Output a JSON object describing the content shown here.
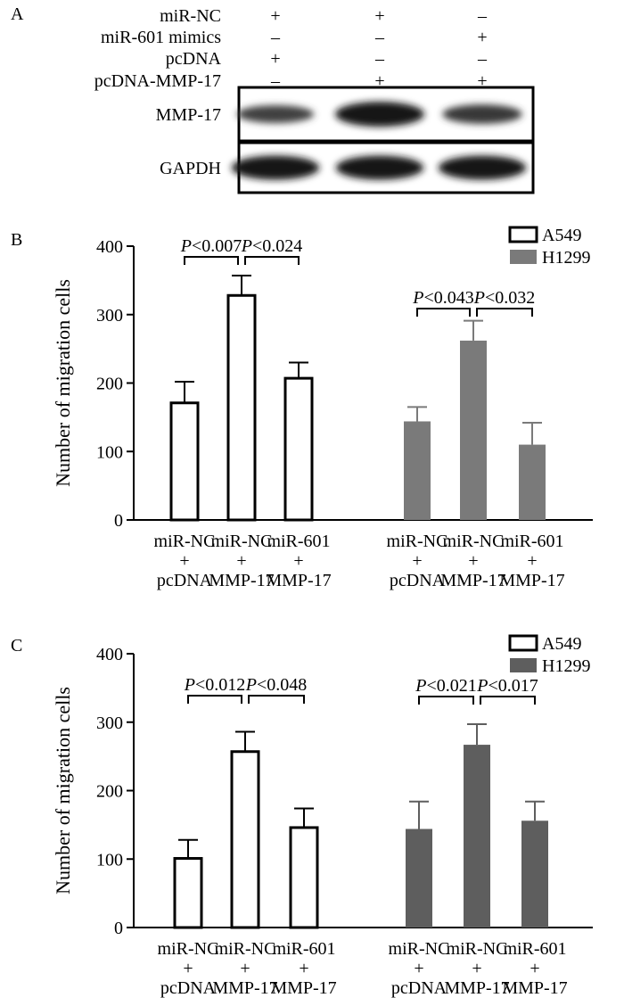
{
  "panel_a": {
    "label": "A",
    "conditions": [
      {
        "label": "miR-NC",
        "signs": [
          "+",
          "+",
          "–"
        ]
      },
      {
        "label": "miR-601 mimics",
        "signs": [
          "–",
          "–",
          "+"
        ]
      },
      {
        "label": "pcDNA",
        "signs": [
          "+",
          "–",
          "–"
        ]
      },
      {
        "label": "pcDNA-MMP-17",
        "signs": [
          "–",
          "+",
          "+"
        ]
      }
    ],
    "blots": [
      {
        "label": "MMP-17",
        "intensity": [
          0.55,
          1.0,
          0.65
        ]
      },
      {
        "label": "GAPDH",
        "intensity": [
          0.95,
          0.95,
          0.95
        ]
      }
    ]
  },
  "chart_data": [
    {
      "panel": "B",
      "type": "bar",
      "ylabel": "Number of migration cells",
      "ylim": [
        0,
        400
      ],
      "yticks": [
        "0",
        "100",
        "200",
        "300",
        "400"
      ],
      "groups": [
        {
          "series": "A549",
          "categories": [
            [
              "miR-NC",
              "+",
              "pcDNA"
            ],
            [
              "miR-NC",
              "+",
              "MMP-17"
            ],
            [
              "miR-601",
              "+",
              "MMP-17"
            ]
          ],
          "values": [
            171,
            328,
            207
          ],
          "errors": [
            31,
            29,
            23
          ],
          "pvalues": [
            {
              "from": 0,
              "to": 1,
              "label": "<0.007"
            },
            {
              "from": 1,
              "to": 2,
              "label": "<0.024"
            }
          ]
        },
        {
          "series": "H1299",
          "categories": [
            [
              "miR-NC",
              "+",
              "pcDNA"
            ],
            [
              "miR-NC",
              "+",
              "MMP-17"
            ],
            [
              "miR-601",
              "+",
              "MMP-17"
            ]
          ],
          "values": [
            144,
            262,
            110
          ],
          "errors": [
            21,
            29,
            32
          ],
          "pvalues": [
            {
              "from": 0,
              "to": 1,
              "label": "<0.043"
            },
            {
              "from": 1,
              "to": 2,
              "label": "<0.032"
            }
          ]
        }
      ],
      "legend": [
        {
          "name": "A549",
          "color": "#ffffff"
        },
        {
          "name": "H1299",
          "color": "#7a7a7a"
        }
      ]
    },
    {
      "panel": "C",
      "type": "bar",
      "ylabel": "Number of migration cells",
      "ylim": [
        0,
        400
      ],
      "yticks": [
        "0",
        "100",
        "200",
        "300",
        "400"
      ],
      "groups": [
        {
          "series": "A549",
          "categories": [
            [
              "miR-NC",
              "+",
              "pcDNA"
            ],
            [
              "miR-NC",
              "+",
              "MMP-17"
            ],
            [
              "miR-601",
              "+",
              "MMP-17"
            ]
          ],
          "values": [
            101,
            257,
            146
          ],
          "errors": [
            27,
            29,
            28
          ],
          "pvalues": [
            {
              "from": 0,
              "to": 1,
              "label": "<0.012"
            },
            {
              "from": 1,
              "to": 2,
              "label": "<0.048"
            }
          ]
        },
        {
          "series": "H1299",
          "categories": [
            [
              "miR-NC",
              "+",
              "pcDNA"
            ],
            [
              "miR-NC",
              "+",
              "MMP-17"
            ],
            [
              "miR-601",
              "+",
              "MMP-17"
            ]
          ],
          "values": [
            144,
            267,
            156
          ],
          "errors": [
            40,
            30,
            28
          ],
          "pvalues": [
            {
              "from": 0,
              "to": 1,
              "label": "<0.021"
            },
            {
              "from": 1,
              "to": 2,
              "label": "<0.017"
            }
          ]
        }
      ],
      "legend": [
        {
          "name": "A549",
          "color": "#ffffff"
        },
        {
          "name": "H1299",
          "color": "#5e5e5e"
        }
      ]
    }
  ]
}
